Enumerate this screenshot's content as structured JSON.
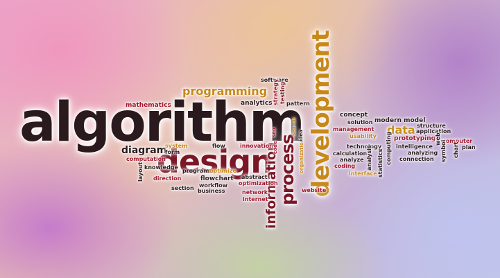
{
  "colors": {
    "dark": "#2a1a1e",
    "red": "#a0162c",
    "orange": "#c8881a",
    "gold": "#c58f14",
    "maroon": "#7a1626"
  },
  "words": {
    "algorithm": "algorithm",
    "design": "design",
    "development": "development",
    "process": "process",
    "information": "information",
    "programming": "programming",
    "diagram": "diagram",
    "data": "data",
    "mathematics": "mathematics",
    "analytics": "analytics",
    "software": "software",
    "strategy": "strategy",
    "testing": "testing",
    "pattern": "pattern",
    "concept": "concept",
    "modern_model": "modern model",
    "structure": "structure",
    "solution": "solution",
    "management": "management",
    "usability": "usability",
    "prototyping": "prototyping",
    "application": "application",
    "computer": "computer",
    "plan": "plan",
    "technology": "technology",
    "intelligence": "intelligence",
    "analyzing": "analyzing",
    "connection": "connection",
    "calculation": "calculation",
    "analyze": "analyze",
    "coding": "coding",
    "interface": "interface",
    "analysis": "analysis",
    "statistics": "statistics",
    "computing": "computing",
    "symbol": "symbol",
    "chart": "chart",
    "web": "web",
    "system": "system",
    "form": "form",
    "flow": "flow",
    "innovation": "innovation",
    "computation": "computation",
    "knowledge": "knowledge",
    "layout": "layout",
    "program": "program",
    "optimize": "optimize",
    "abstract": "abstract",
    "optimization": "optimization",
    "direction": "direction",
    "flowchart": "flowchart",
    "workflow": "workflow",
    "business": "business",
    "section": "section",
    "network": "network",
    "internet": "internet",
    "website": "website",
    "code": "code",
    "seo": "seo",
    "search": "search",
    "organization": "organization",
    "idea": "idea"
  }
}
